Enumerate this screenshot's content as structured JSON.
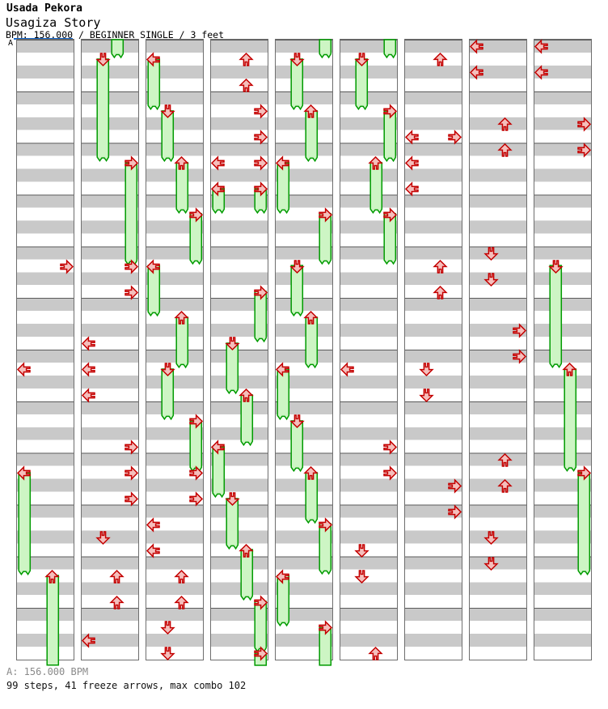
{
  "header": {
    "artist": "Usada Pekora",
    "title": "Usagiza Story",
    "meta": "BPM: 156.000 / BEGINNER SINGLE / 3 feet"
  },
  "footer": {
    "bpm_label": "A: 156.000 BPM",
    "stats": "99 steps, 41 freeze arrows, max combo 102"
  },
  "chart_data": {
    "type": "ddr-stepchart",
    "title": "Usagiza Story",
    "artist": "Usada Pekora",
    "bpm_marker": "A",
    "bpm": 156.0,
    "difficulty": "BEGINNER SINGLE",
    "feet": 3,
    "steps": 99,
    "freeze_arrow_count": 41,
    "max_combo": 102,
    "lanes": [
      "left",
      "down",
      "up",
      "right"
    ],
    "columns_count": 9,
    "beats_per_column": 48,
    "beats_per_measure": 4,
    "colors": {
      "band_gray": "#c9c9c9",
      "measure_line": "#5a5a5a",
      "column_border": "#6e6e6e",
      "note_fill": "#f5bfbc",
      "note_stroke": "#c40000",
      "freeze_fill": "#cdf5c4",
      "freeze_stroke": "#009b00",
      "bpm_line_blue": "#1266cc"
    },
    "columns": [
      {
        "taps": [
          [
            "R",
            17
          ],
          [
            "L",
            25
          ]
        ],
        "freezes": [
          [
            "L",
            33,
            41
          ],
          [
            "U",
            41,
            49
          ]
        ],
        "tails": []
      },
      {
        "taps": [
          [
            "R",
            17
          ],
          [
            "R",
            19
          ],
          [
            "L",
            23
          ],
          [
            "L",
            25
          ],
          [
            "L",
            27
          ],
          [
            "R",
            31
          ],
          [
            "R",
            33
          ],
          [
            "R",
            35
          ],
          [
            "D",
            38
          ],
          [
            "U",
            41
          ],
          [
            "U",
            43
          ],
          [
            "L",
            46
          ]
        ],
        "freezes": [
          [
            "D",
            1,
            9
          ],
          [
            "R",
            9,
            17
          ]
        ],
        "tails": [
          [
            "U",
            1
          ]
        ]
      },
      {
        "taps": [
          [
            "R",
            33
          ],
          [
            "R",
            35
          ],
          [
            "L",
            37
          ],
          [
            "L",
            39
          ],
          [
            "U",
            41
          ],
          [
            "U",
            43
          ],
          [
            "D",
            45
          ],
          [
            "D",
            47
          ]
        ],
        "freezes": [
          [
            "L",
            1,
            5
          ],
          [
            "D",
            5,
            9
          ],
          [
            "U",
            9,
            13
          ],
          [
            "R",
            13,
            17
          ],
          [
            "L",
            17,
            21
          ],
          [
            "U",
            21,
            25
          ],
          [
            "D",
            25,
            29
          ],
          [
            "R",
            29,
            33
          ]
        ],
        "tails": []
      },
      {
        "taps": [
          [
            "U",
            1
          ],
          [
            "U",
            3
          ],
          [
            "R",
            5
          ],
          [
            "R",
            7
          ],
          [
            "L",
            9
          ],
          [
            "R",
            9
          ]
        ],
        "freezes": [
          [
            "L",
            11,
            13
          ],
          [
            "R",
            11,
            13
          ],
          [
            "R",
            19,
            23
          ],
          [
            "D",
            23,
            27
          ],
          [
            "U",
            27,
            31
          ],
          [
            "L",
            31,
            35
          ],
          [
            "D",
            35,
            39
          ],
          [
            "U",
            39,
            43
          ],
          [
            "R",
            43,
            47
          ],
          [
            "R",
            47,
            49
          ]
        ],
        "tails": []
      },
      {
        "taps": [],
        "freezes": [
          [
            "D",
            1,
            5
          ],
          [
            "U",
            5,
            9
          ],
          [
            "L",
            9,
            13
          ],
          [
            "R",
            13,
            17
          ],
          [
            "D",
            17,
            21
          ],
          [
            "U",
            21,
            25
          ],
          [
            "L",
            25,
            29
          ],
          [
            "D",
            29,
            33
          ],
          [
            "U",
            33,
            37
          ],
          [
            "R",
            37,
            41
          ],
          [
            "L",
            41,
            45
          ],
          [
            "R",
            45,
            49
          ]
        ],
        "tails": [
          [
            "R",
            1
          ]
        ]
      },
      {
        "taps": [
          [
            "L",
            25
          ],
          [
            "R",
            31
          ],
          [
            "R",
            33
          ],
          [
            "D",
            39
          ],
          [
            "D",
            41
          ],
          [
            "U",
            47
          ]
        ],
        "freezes": [
          [
            "D",
            1,
            5
          ],
          [
            "R",
            5,
            9
          ],
          [
            "U",
            9,
            13
          ],
          [
            "R",
            13,
            17
          ]
        ],
        "tails": [
          [
            "R",
            1
          ]
        ]
      },
      {
        "taps": [
          [
            "U",
            1
          ],
          [
            "L",
            7
          ],
          [
            "R",
            7
          ],
          [
            "L",
            9
          ],
          [
            "L",
            11
          ],
          [
            "U",
            17
          ],
          [
            "U",
            19
          ],
          [
            "D",
            25
          ],
          [
            "D",
            27
          ],
          [
            "R",
            34
          ],
          [
            "R",
            36
          ]
        ],
        "freezes": [],
        "tails": []
      },
      {
        "taps": [
          [
            "L",
            0
          ],
          [
            "L",
            2
          ],
          [
            "U",
            6
          ],
          [
            "U",
            8
          ],
          [
            "D",
            16
          ],
          [
            "D",
            18
          ],
          [
            "R",
            22
          ],
          [
            "R",
            24
          ],
          [
            "U",
            32
          ],
          [
            "U",
            34
          ],
          [
            "D",
            38
          ],
          [
            "D",
            40
          ]
        ],
        "freezes": [],
        "tails": []
      },
      {
        "taps": [
          [
            "L",
            0
          ],
          [
            "L",
            2
          ],
          [
            "R",
            6
          ],
          [
            "R",
            8
          ]
        ],
        "freezes": [
          [
            "D",
            17,
            25
          ],
          [
            "U",
            25,
            33
          ],
          [
            "R",
            33,
            41
          ]
        ],
        "tails": []
      }
    ]
  }
}
